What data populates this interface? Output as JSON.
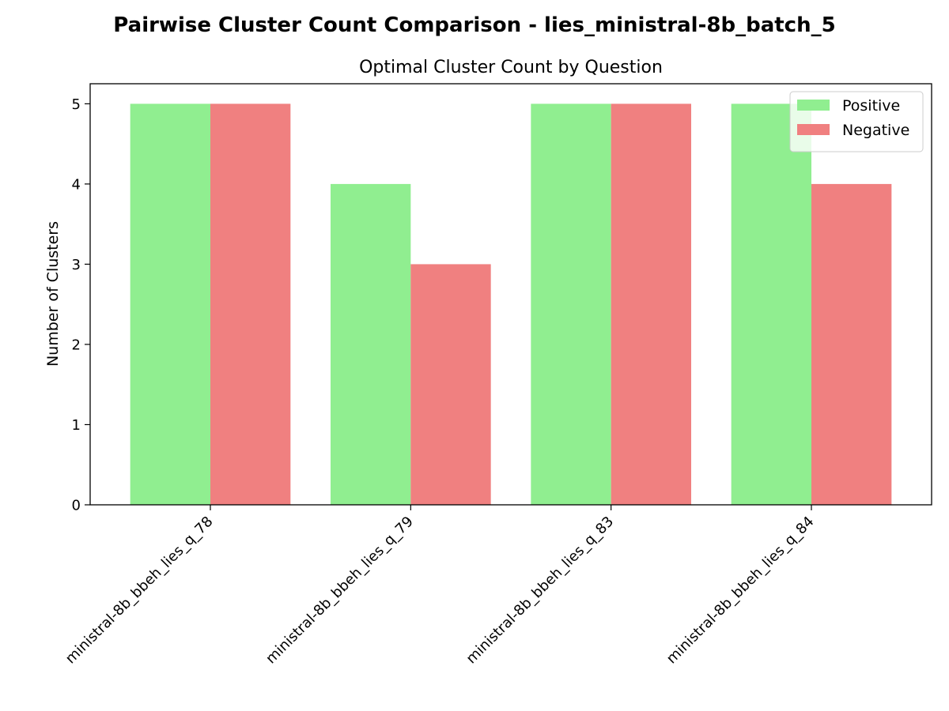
{
  "chart_data": {
    "type": "bar",
    "suptitle": "Pairwise Cluster Count Comparison - lies_ministral-8b_batch_5",
    "title": "Optimal Cluster Count by Question",
    "xlabel": "",
    "ylabel": "Number of Clusters",
    "categories": [
      "ministral-8b_bbeh_lies_q_78",
      "ministral-8b_bbeh_lies_q_79",
      "ministral-8b_bbeh_lies_q_83",
      "ministral-8b_bbeh_lies_q_84"
    ],
    "series": [
      {
        "name": "Positive",
        "color": "#90ee90",
        "values": [
          5,
          4,
          5,
          5
        ]
      },
      {
        "name": "Negative",
        "color": "#f08080",
        "values": [
          5,
          3,
          5,
          4
        ]
      }
    ],
    "ylim": [
      0,
      5.25
    ],
    "yticks": [
      0,
      1,
      2,
      3,
      4,
      5
    ],
    "grid": false,
    "legend_position": "top-right"
  }
}
